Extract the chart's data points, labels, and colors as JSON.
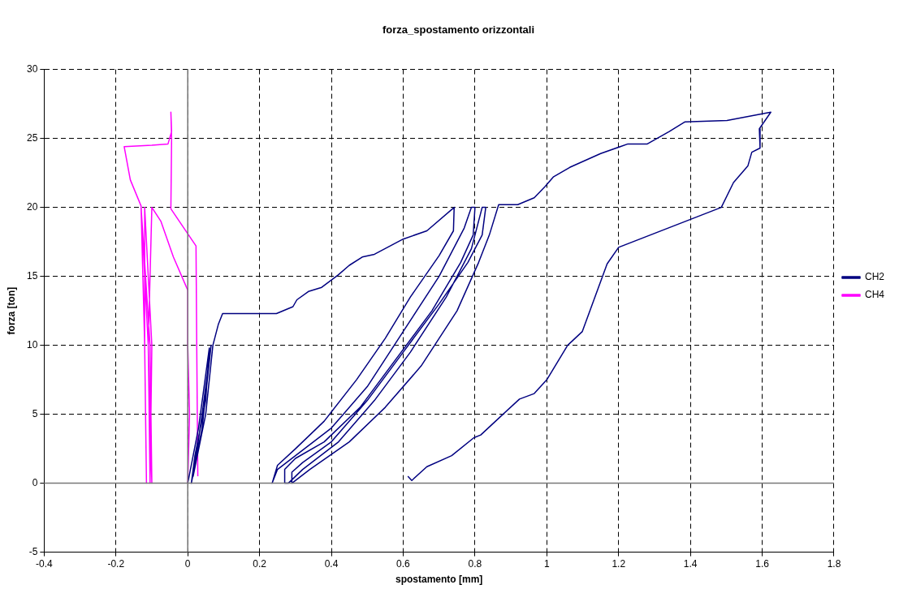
{
  "chart_data": {
    "type": "line",
    "title": "forza_spostamento orizzontali",
    "xlabel": "spostamento [mm]",
    "ylabel": "forza [ton]",
    "xlim": [
      -0.4,
      1.8
    ],
    "xticks": [
      -0.4,
      -0.2,
      0,
      0.2,
      0.4,
      0.6,
      0.8,
      1,
      1.2,
      1.4,
      1.6,
      1.8
    ],
    "ylim": [
      -5,
      30
    ],
    "yticks": [
      -5,
      0,
      5,
      10,
      15,
      20,
      25,
      30
    ],
    "grid": true,
    "legend": "right",
    "marker": "none",
    "line_style": "solid",
    "series": [
      {
        "name": "CH2",
        "color": "#000080",
        "x": [
          0,
          0.03,
          0.06,
          0.05,
          0.02,
          0.01,
          0.04,
          0.065,
          0.04,
          0.015,
          0.05,
          0.07,
          0.085,
          0.097,
          0.247,
          0.293,
          0.304,
          0.336,
          0.373,
          0.419,
          0.45,
          0.486,
          0.52,
          0.6,
          0.666,
          0.742,
          0.74,
          0.7,
          0.62,
          0.55,
          0.47,
          0.38,
          0.3,
          0.25,
          0.235,
          0.25,
          0.3,
          0.4,
          0.5,
          0.6,
          0.7,
          0.77,
          0.79,
          0.8,
          0.795,
          0.76,
          0.68,
          0.58,
          0.48,
          0.38,
          0.3,
          0.27,
          0.27,
          0.28,
          0.32,
          0.42,
          0.52,
          0.62,
          0.72,
          0.79,
          0.82,
          0.83,
          0.82,
          0.78,
          0.7,
          0.6,
          0.5,
          0.4,
          0.32,
          0.29,
          0.29,
          0.34,
          0.45,
          0.55,
          0.65,
          0.75,
          0.81,
          0.84,
          0.866,
          0.919,
          0.965,
          0.995,
          1.018,
          1.064,
          1.15,
          1.226,
          1.28,
          1.341,
          1.385,
          1.502,
          1.624,
          1.592,
          1.594,
          1.571,
          1.56,
          1.52,
          1.486,
          1.2,
          1.168,
          1.099,
          1.058,
          1,
          0.965,
          0.924,
          0.878,
          0.816,
          0.797,
          0.735,
          0.666,
          0.624,
          0.613
        ],
        "values": [
          0,
          4,
          9.8,
          6,
          2,
          0,
          4,
          10,
          5,
          0.5,
          5,
          10,
          11.5,
          12.3,
          12.3,
          12.8,
          13.3,
          13.9,
          14.2,
          15.1,
          15.8,
          16.4,
          16.6,
          17.7,
          18.3,
          20,
          18.3,
          16.5,
          13.5,
          10.5,
          7.5,
          4.5,
          2.5,
          1.3,
          0,
          1,
          2,
          4,
          7,
          11,
          15,
          18.5,
          20,
          20,
          18,
          16,
          12.5,
          9,
          5.5,
          3,
          1.8,
          1,
          0,
          0,
          1,
          3,
          6,
          9.5,
          13.5,
          17,
          20,
          20,
          18,
          16,
          13,
          9.5,
          6,
          3,
          1.5,
          0.8,
          0,
          1,
          3,
          5.5,
          8.5,
          12.5,
          16,
          18,
          20.2,
          20.2,
          20.7,
          21.5,
          22.2,
          22.9,
          23.9,
          24.6,
          24.6,
          25.5,
          26.2,
          26.3,
          26.9,
          25.7,
          24.3,
          24,
          23,
          21.8,
          20,
          17.1,
          15.9,
          11,
          10,
          7.5,
          6.5,
          6.1,
          5,
          3.5,
          3.3,
          2,
          1.2,
          0.2,
          0.5
        ]
      },
      {
        "name": "CH4",
        "color": "#ff00ff",
        "x": [
          0,
          0.005,
          0,
          0,
          -0.04,
          -0.075,
          -0.1,
          -0.11,
          -0.105,
          -0.1,
          -0.12,
          -0.12,
          -0.115,
          -0.12,
          -0.13,
          -0.105,
          -0.1,
          -0.11,
          -0.13,
          -0.16,
          -0.177,
          -0.1,
          -0.055,
          -0.045,
          -0.047,
          -0.045,
          -0.047,
          0.023,
          0.025,
          0.028
        ],
        "values": [
          0,
          5,
          10,
          14,
          16.4,
          19,
          20,
          10,
          0,
          10,
          20,
          10,
          0,
          10,
          20,
          10,
          0,
          10,
          20.1,
          22,
          24.4,
          24.5,
          24.6,
          25.5,
          26.9,
          25,
          19.9,
          17.2,
          10.1,
          0.5
        ]
      }
    ]
  }
}
